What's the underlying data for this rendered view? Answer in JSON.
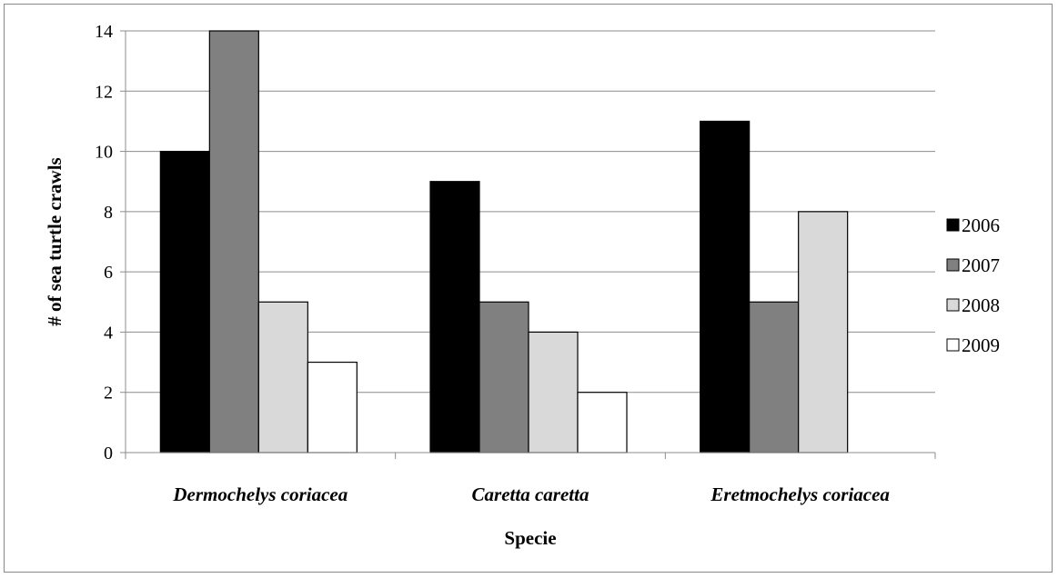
{
  "chart_data": {
    "type": "bar",
    "title": "",
    "xlabel": "Specie",
    "ylabel": "# of sea turtle crawls",
    "categories": [
      "Dermochelys coriacea",
      "Caretta caretta",
      "Eretmochelys coriacea"
    ],
    "series": [
      {
        "name": "2006",
        "values": [
          10,
          9,
          11
        ],
        "color": "#000000"
      },
      {
        "name": "2007",
        "values": [
          14,
          5,
          5
        ],
        "color": "#808080"
      },
      {
        "name": "2008",
        "values": [
          5,
          4,
          8
        ],
        "color": "#d9d9d9"
      },
      {
        "name": "2009",
        "values": [
          3,
          2,
          0
        ],
        "color": "#ffffff"
      }
    ],
    "ylim": [
      0,
      14
    ],
    "yticks": [
      0,
      2,
      4,
      6,
      8,
      10,
      12,
      14
    ],
    "grid": true,
    "legend": "right"
  }
}
